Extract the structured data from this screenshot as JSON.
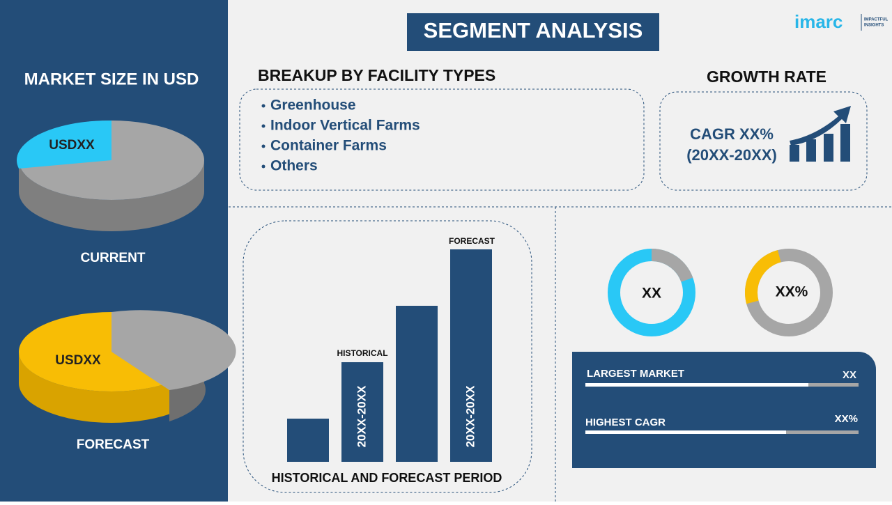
{
  "header": {
    "title": "SEGMENT ANALYSIS",
    "logo": "imarc",
    "logo_tagline_1": "IMPACTFUL",
    "logo_tagline_2": "INSIGHTS"
  },
  "left": {
    "title": "MARKET SIZE IN USD",
    "current": {
      "value": "USDXX",
      "label": "CURRENT"
    },
    "forecast": {
      "value": "USDXX",
      "label": "FORECAST"
    }
  },
  "breakup": {
    "title": "BREAKUP BY FACILITY TYPES",
    "items": [
      "Greenhouse",
      "Indoor Vertical Farms",
      "Container Farms",
      "Others"
    ]
  },
  "growth": {
    "title": "GROWTH RATE",
    "cagr": "CAGR XX%",
    "period": "(20XX-20XX)"
  },
  "period_chart": {
    "title": "HISTORICAL AND FORECAST PERIOD",
    "historical_label": "HISTORICAL",
    "historical_period": "20XX-20XX",
    "forecast_label": "FORECAST",
    "forecast_period": "20XX-20XX"
  },
  "donuts": [
    "XX",
    "XX%"
  ],
  "stats": [
    {
      "label": "LARGEST MARKET",
      "value": "XX"
    },
    {
      "label": "HIGHEST CAGR",
      "value": "XX%"
    }
  ]
}
